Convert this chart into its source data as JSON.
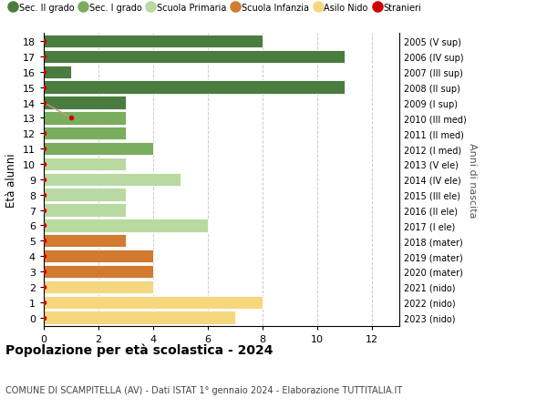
{
  "ages": [
    18,
    17,
    16,
    15,
    14,
    13,
    12,
    11,
    10,
    9,
    8,
    7,
    6,
    5,
    4,
    3,
    2,
    1,
    0
  ],
  "right_labels": [
    "2005 (V sup)",
    "2006 (IV sup)",
    "2007 (III sup)",
    "2008 (II sup)",
    "2009 (I sup)",
    "2010 (III med)",
    "2011 (II med)",
    "2012 (I med)",
    "2013 (V ele)",
    "2014 (IV ele)",
    "2015 (III ele)",
    "2016 (II ele)",
    "2017 (I ele)",
    "2018 (mater)",
    "2019 (mater)",
    "2020 (mater)",
    "2021 (nido)",
    "2022 (nido)",
    "2023 (nido)"
  ],
  "values": [
    8,
    11,
    1,
    11,
    3,
    3,
    3,
    4,
    3,
    5,
    3,
    3,
    6,
    3,
    4,
    4,
    4,
    8,
    7
  ],
  "bar_colors": [
    "#4a7c3f",
    "#4a7c3f",
    "#4a7c3f",
    "#4a7c3f",
    "#4a7c3f",
    "#7aad5e",
    "#7aad5e",
    "#7aad5e",
    "#b8d9a0",
    "#b8d9a0",
    "#b8d9a0",
    "#b8d9a0",
    "#b8d9a0",
    "#d17a30",
    "#d17a30",
    "#d17a30",
    "#f5d77e",
    "#f5d77e",
    "#f5d77e"
  ],
  "stranieri_color": "#cc0000",
  "stranieri_line_color": "#c4998a",
  "stranieri_dot_x": [
    0,
    0,
    0,
    0,
    0,
    1,
    0,
    0,
    0,
    0,
    0,
    0,
    0,
    0,
    0,
    0,
    0,
    0,
    0
  ],
  "legend_items": [
    {
      "label": "Sec. II grado",
      "color": "#4a7c3f"
    },
    {
      "label": "Sec. I grado",
      "color": "#7aad5e"
    },
    {
      "label": "Scuola Primaria",
      "color": "#b8d9a0"
    },
    {
      "label": "Scuola Infanzia",
      "color": "#d17a30"
    },
    {
      "label": "Asilo Nido",
      "color": "#f5d77e"
    },
    {
      "label": "Stranieri",
      "color": "#cc0000"
    }
  ],
  "ylabel": "Età alunni",
  "right_ylabel": "Anni di nascita",
  "title": "Popolazione per età scolastica - 2024",
  "subtitle": "COMUNE DI SCAMPITELLA (AV) - Dati ISTAT 1° gennaio 2024 - Elaborazione TUTTITALIA.IT",
  "xlim": [
    0,
    13
  ],
  "ylim": [
    -0.55,
    18.55
  ],
  "xticks": [
    0,
    2,
    4,
    6,
    8,
    10,
    12
  ],
  "background_color": "#ffffff",
  "grid_color": "#cccccc",
  "bar_height": 0.85
}
